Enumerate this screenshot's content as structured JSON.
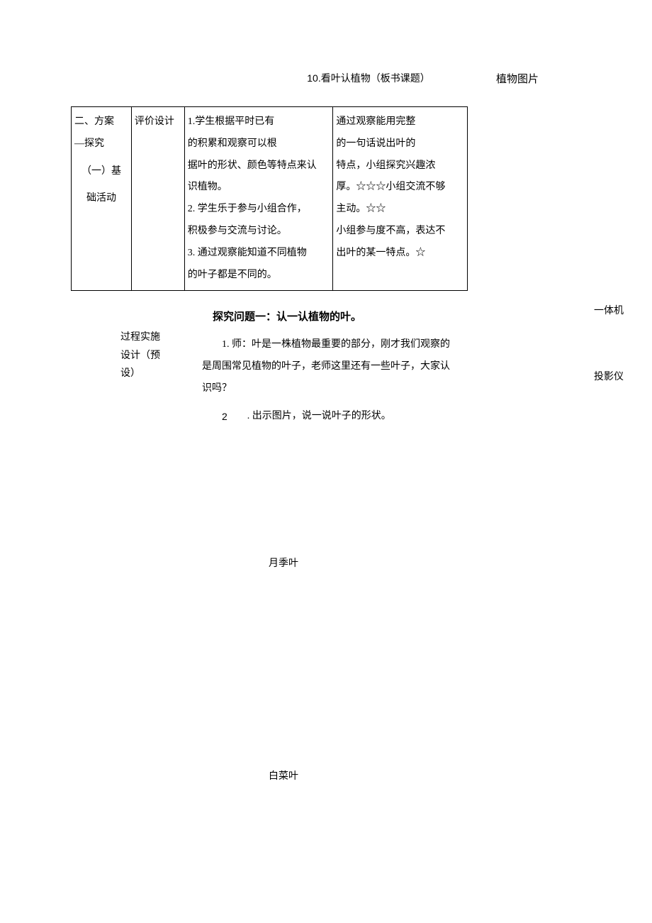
{
  "header": {
    "topRightLabel": "植物图片",
    "lessonNumber": "10.",
    "lessonTitle": "看叶认植物（板书课题）"
  },
  "table": {
    "col1": {
      "line1": "二、方案",
      "line2": "—探究",
      "sub1": "（一）基",
      "sub2": "础活动"
    },
    "col2": "评价设计",
    "col3": "1.学生根据平时已有的积累和观察可以根据叶的形状、颜色等特点来认识植物。\n2. 学生乐于参与小组合作，积极参与交流与讨论。\n3. 通过观察能知道不同植物的叶子都是不同的。",
    "col3_lines": {
      "l1": "1.学生根据平时已有",
      "l2": "的积累和观察可以根",
      "l3": "据叶的形状、颜色等特点来认",
      "l4": "识植物。",
      "l5": "2. 学生乐于参与小组合作，",
      "l6": "积极参与交流与讨论。",
      "l7": "3. 通过观察能知道不同植物",
      "l8": "的叶子都是不同的。"
    },
    "col4_lines": {
      "l1": "通过观察能用完整",
      "l2": "的一句话说出叶的",
      "l3": "特点，小组探究兴趣浓",
      "l4": "厚。☆☆☆小组交流不够",
      "l5": "主动。☆☆",
      "l6": "小组参与度不高，表达不",
      "l7": "出叶的某一特点。☆"
    }
  },
  "sideLabels": {
    "machine1": "一体机",
    "machine2": "投影仪"
  },
  "process": {
    "label": "过程实施设计（预设）",
    "labelL1": "过程实施",
    "labelL2": "设计（预",
    "labelL3": "设）",
    "questionTitle": "探究问题一：认一认植物的叶。",
    "item1": "1. 师：叶是一株植物最重要的部分，刚才我们观察的是周围常见植物的叶子，老师这里还有一些叶子，大家认识吗？",
    "item2num": "2",
    "item2text": ". 出示图片，说一说叶子的形状。"
  },
  "leaves": {
    "leaf1": "月季叶",
    "leaf2": "白菜叶"
  },
  "styling": {
    "fontSize": 14,
    "titleFontSize": 15,
    "lineHeight": 2.2,
    "textColor": "#000000",
    "backgroundColor": "#ffffff",
    "borderColor": "#000000",
    "pageWidth": 920,
    "pageHeight": 1301,
    "tableWidth": 560,
    "fontFamily": "SimSun"
  }
}
